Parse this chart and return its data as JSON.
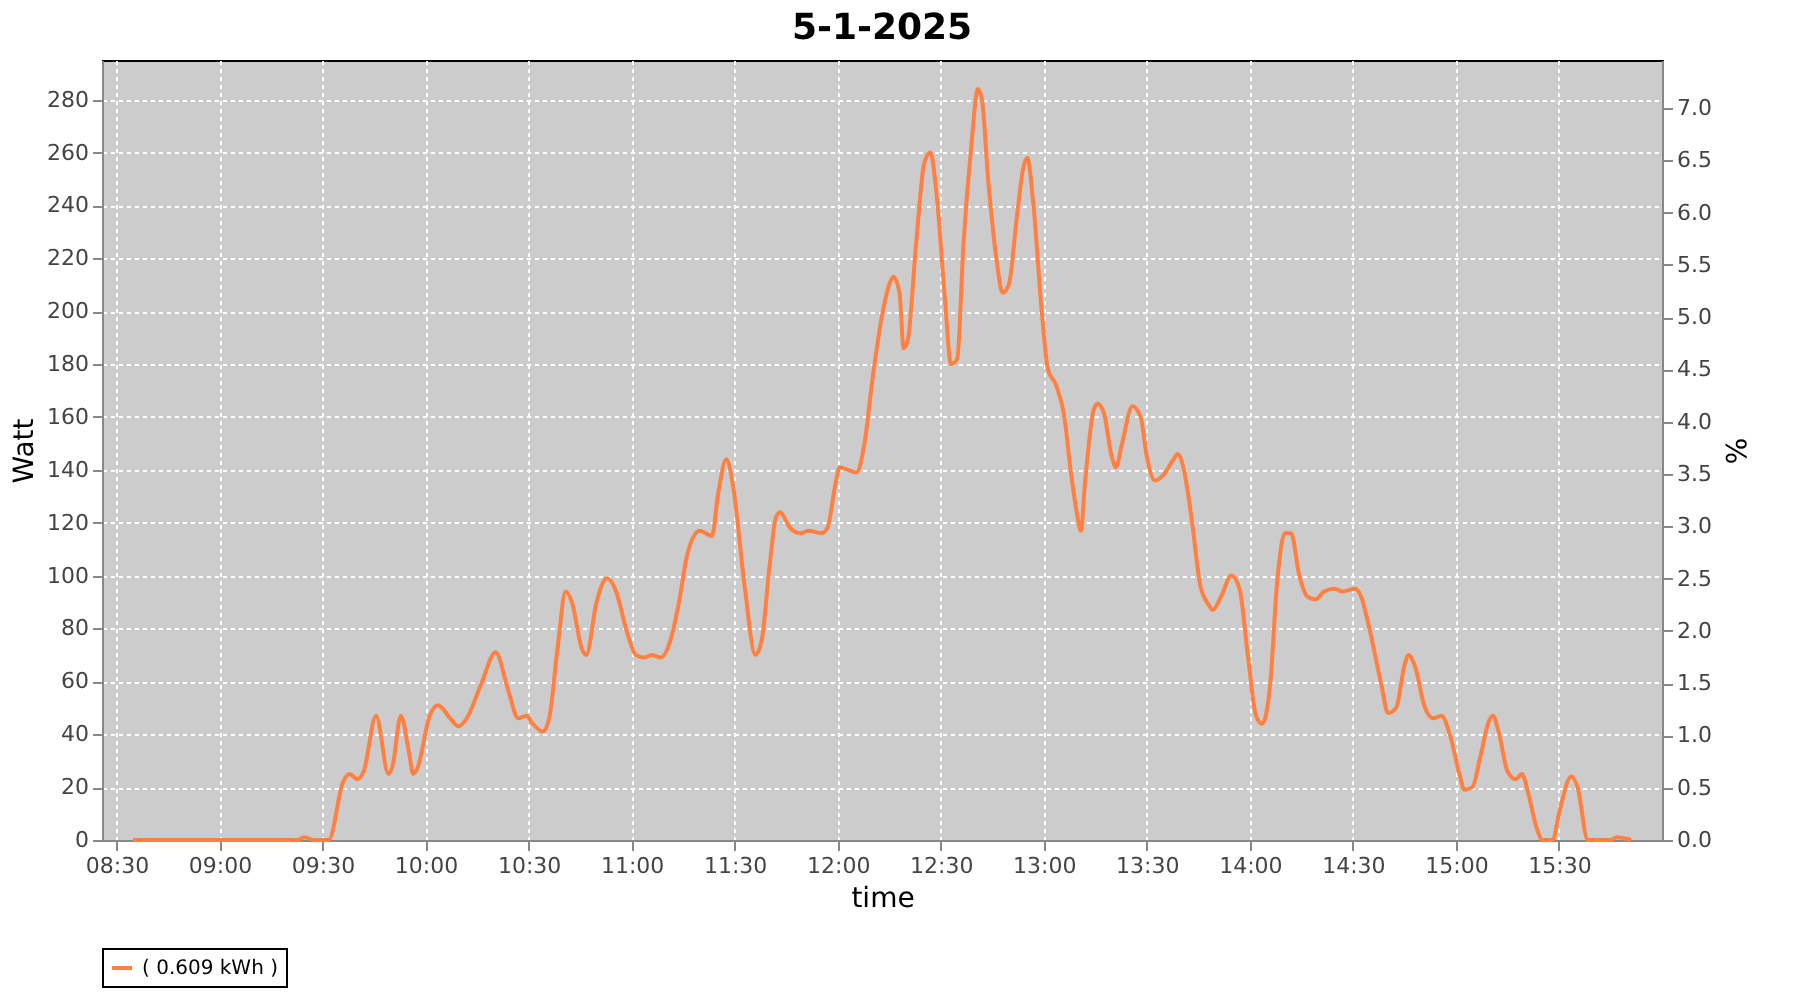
{
  "chart_data": {
    "type": "line",
    "title": "5-1-2025",
    "xlabel": "time",
    "ylabel": "Watt",
    "y2label": "%",
    "x": [
      8.58,
      9.38,
      9.41,
      9.46,
      9.53,
      9.6,
      9.63,
      9.67,
      9.7,
      9.76,
      9.82,
      9.84,
      9.88,
      9.92,
      9.94,
      9.96,
      10.02,
      10.06,
      10.12,
      10.16,
      10.2,
      10.27,
      10.34,
      10.4,
      10.45,
      10.49,
      10.52,
      10.57,
      10.6,
      10.64,
      10.68,
      10.71,
      10.76,
      10.78,
      10.83,
      10.88,
      10.92,
      10.98,
      11.02,
      11.06,
      11.1,
      11.14,
      11.19,
      11.23,
      11.27,
      11.33,
      11.39,
      11.42,
      11.46,
      11.49,
      11.55,
      11.6,
      11.63,
      11.67,
      11.7,
      11.72,
      11.77,
      11.82,
      11.86,
      11.92,
      11.95,
      11.99,
      12.01,
      12.05,
      12.09,
      12.13,
      12.17,
      12.21,
      12.25,
      12.27,
      12.3,
      12.32,
      12.34,
      12.38,
      12.42,
      12.45,
      12.48,
      12.52,
      12.55,
      12.58,
      12.61,
      12.65,
      12.68,
      12.7,
      12.73,
      12.77,
      12.8,
      12.83,
      12.87,
      12.9,
      12.92,
      12.95,
      12.99,
      13.02,
      13.06,
      13.1,
      13.13,
      13.16,
      13.18,
      13.2,
      13.24,
      13.26,
      13.29,
      13.33,
      13.35,
      13.38,
      13.43,
      13.47,
      13.5,
      13.54,
      13.58,
      13.63,
      13.65,
      13.68,
      13.72,
      13.76,
      13.8,
      13.82,
      13.86,
      13.91,
      13.95,
      13.99,
      14.03,
      14.06,
      14.1,
      14.13,
      14.17,
      14.2,
      14.24,
      14.28,
      14.32,
      14.36,
      14.41,
      14.45,
      14.51,
      14.54,
      14.58,
      14.64,
      14.67,
      14.71,
      14.75,
      14.77,
      14.8,
      14.85,
      14.89,
      14.93,
      14.97,
      15.02,
      15.04,
      15.08,
      15.12,
      15.16,
      15.18,
      15.21,
      15.25,
      15.29,
      15.32,
      15.35,
      15.39,
      15.42,
      15.47,
      15.5,
      15.56,
      15.59,
      15.64,
      15.75,
      15.78,
      15.85
    ],
    "series": [
      {
        "name": "( 0.609 kWh )",
        "color": "#ff8040",
        "values": [
          0,
          0,
          1,
          0,
          0,
          22,
          25,
          23,
          26,
          47,
          25,
          28,
          47,
          33,
          25,
          27,
          47,
          51,
          46,
          43,
          46,
          59,
          71,
          57,
          46,
          47,
          44,
          41,
          46,
          72,
          94,
          90,
          72,
          70,
          90,
          99,
          95,
          78,
          70,
          69,
          70,
          69,
          76,
          90,
          108,
          117,
          115,
          131,
          144,
          135,
          95,
          70,
          75,
          104,
          122,
          124,
          118,
          116,
          117,
          116,
          118,
          135,
          141,
          140,
          139,
          150,
          175,
          196,
          210,
          213,
          207,
          186,
          189,
          225,
          256,
          260,
          244,
          205,
          180,
          182,
          225,
          264,
          284,
          280,
          250,
          220,
          207,
          210,
          236,
          254,
          258,
          240,
          200,
          178,
          172,
          160,
          140,
          124,
          117,
          135,
          162,
          165,
          162,
          145,
          141,
          150,
          164,
          160,
          145,
          136,
          138,
          144,
          146,
          140,
          120,
          96,
          89,
          87,
          92,
          100,
          95,
          70,
          47,
          44,
          60,
          95,
          116,
          116,
          100,
          92,
          91,
          94,
          95,
          94,
          95,
          92,
          80,
          58,
          48,
          50,
          66,
          70,
          66,
          50,
          46,
          47,
          40,
          24,
          19,
          20,
          32,
          45,
          47,
          40,
          26,
          23,
          25,
          18,
          5,
          0,
          0,
          10,
          24,
          20,
          0,
          0,
          1,
          0
        ]
      }
    ],
    "xlim": [
      8.43,
      16.0
    ],
    "xticks": [
      {
        "value": 8.5,
        "label": "08:30"
      },
      {
        "value": 9,
        "label": "09:00"
      },
      {
        "value": 9.5,
        "label": "09:30"
      },
      {
        "value": 10,
        "label": "10:00"
      },
      {
        "value": 10.5,
        "label": "10:30"
      },
      {
        "value": 11,
        "label": "11:00"
      },
      {
        "value": 11.5,
        "label": "11:30"
      },
      {
        "value": 12,
        "label": "12:00"
      },
      {
        "value": 12.5,
        "label": "12:30"
      },
      {
        "value": 13,
        "label": "13:00"
      },
      {
        "value": 13.5,
        "label": "13:30"
      },
      {
        "value": 14,
        "label": "14:00"
      },
      {
        "value": 14.5,
        "label": "14:30"
      },
      {
        "value": 15,
        "label": "15:00"
      },
      {
        "value": 15.5,
        "label": "15:30"
      }
    ],
    "ylim": [
      0,
      295
    ],
    "yticks": [
      0,
      20,
      40,
      60,
      80,
      100,
      120,
      140,
      160,
      180,
      200,
      220,
      240,
      260,
      280
    ],
    "y2lim": [
      0,
      7.46
    ],
    "y2ticks": [
      {
        "value": 0,
        "label": "0.0"
      },
      {
        "value": 0.5,
        "label": "0.5"
      },
      {
        "value": 1,
        "label": "1.0"
      },
      {
        "value": 1.5,
        "label": "1.5"
      },
      {
        "value": 2,
        "label": "2.0"
      },
      {
        "value": 2.5,
        "label": "2.5"
      },
      {
        "value": 3,
        "label": "3.0"
      },
      {
        "value": 3.5,
        "label": "3.5"
      },
      {
        "value": 4,
        "label": "4.0"
      },
      {
        "value": 4.5,
        "label": "4.5"
      },
      {
        "value": 5,
        "label": "5.0"
      },
      {
        "value": 5.5,
        "label": "5.5"
      },
      {
        "value": 6,
        "label": "6.0"
      },
      {
        "value": 6.5,
        "label": "6.5"
      },
      {
        "value": 7,
        "label": "7.0"
      }
    ],
    "grid": true,
    "legend": "bottom",
    "marker": "none",
    "line_style": "solid"
  }
}
